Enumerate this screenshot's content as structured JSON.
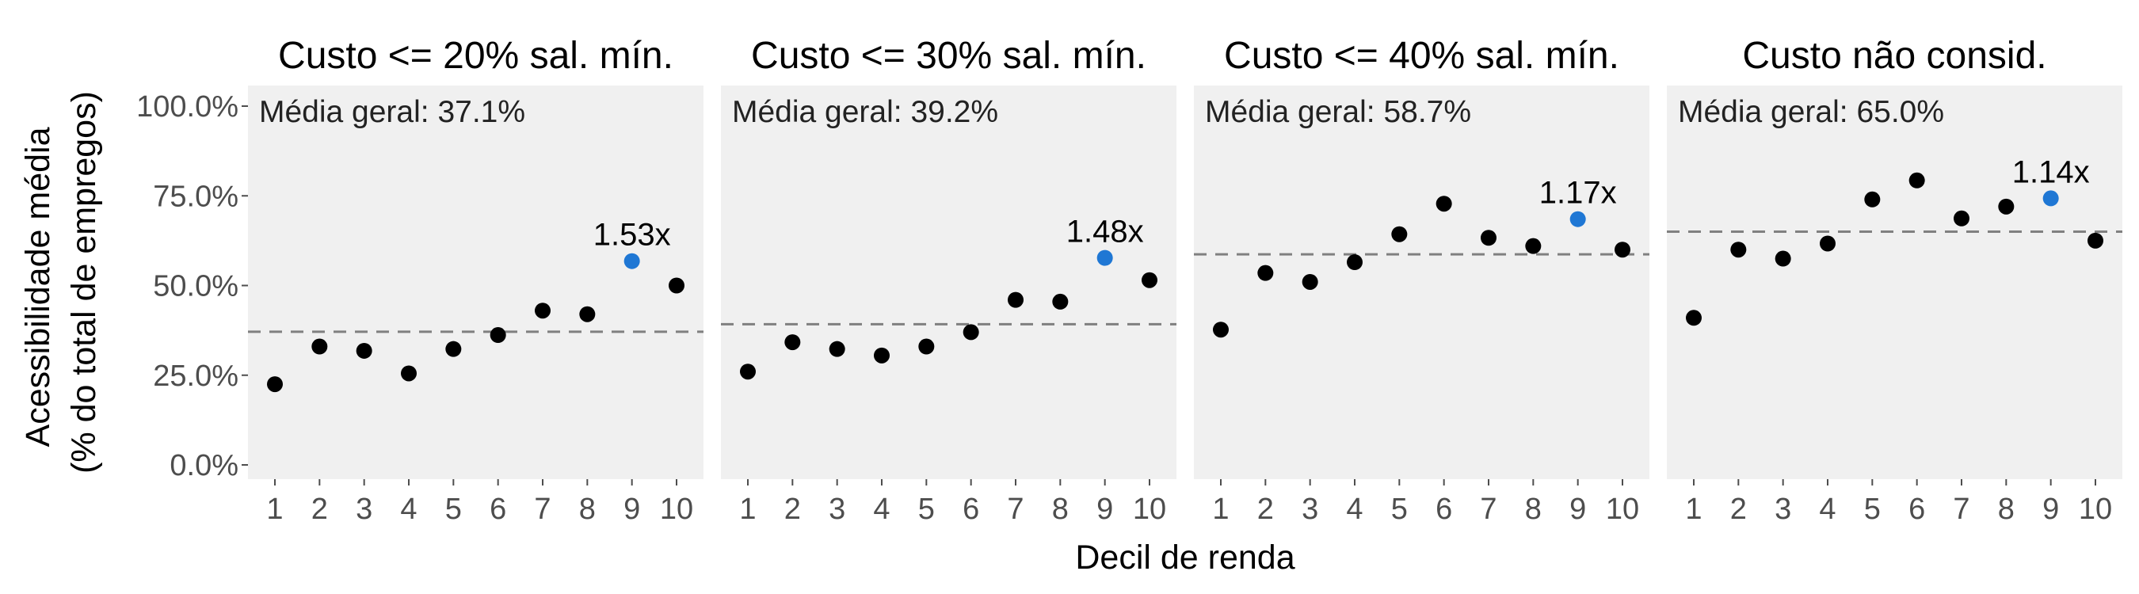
{
  "chart_data": {
    "type": "scatter",
    "xlabel": "Decil de renda",
    "ylabel_lines": [
      "Acessibilidade média",
      "(% do total de empregos)"
    ],
    "categories": [
      "1",
      "2",
      "3",
      "4",
      "5",
      "6",
      "7",
      "8",
      "9",
      "10"
    ],
    "ylim": [
      0,
      1
    ],
    "yticks": [
      0,
      0.25,
      0.5,
      0.75,
      1.0
    ],
    "ytick_labels": [
      "0.0%",
      "25.0%",
      "50.0%",
      "75.0%",
      "100.0%"
    ],
    "highlight_decile": 9,
    "colors": {
      "point": "#000000",
      "highlight": "#1f77d4",
      "average_line": "#808080",
      "panel_bg": "#f0f0f0"
    },
    "grid": false,
    "panels": [
      {
        "title": "Custo <= 20% sal. mín.",
        "avg_label": "Média geral: 37.1%",
        "average": 0.371,
        "ratio_label": "1.53x",
        "values": [
          0.225,
          0.33,
          0.318,
          0.255,
          0.323,
          0.362,
          0.43,
          0.42,
          0.568,
          0.5
        ]
      },
      {
        "title": "Custo <= 30% sal. mín.",
        "avg_label": "Média geral: 39.2%",
        "average": 0.392,
        "ratio_label": "1.48x",
        "values": [
          0.26,
          0.342,
          0.323,
          0.305,
          0.33,
          0.37,
          0.46,
          0.455,
          0.577,
          0.515
        ]
      },
      {
        "title": "Custo <= 40% sal. mín.",
        "avg_label": "Média geral: 58.7%",
        "average": 0.587,
        "ratio_label": "1.17x",
        "values": [
          0.377,
          0.535,
          0.51,
          0.565,
          0.643,
          0.728,
          0.633,
          0.61,
          0.685,
          0.6
        ]
      },
      {
        "title": "Custo não consid.",
        "avg_label": "Média geral: 65.0%",
        "average": 0.65,
        "ratio_label": "1.14x",
        "values": [
          0.41,
          0.6,
          0.575,
          0.617,
          0.74,
          0.793,
          0.687,
          0.72,
          0.743,
          0.625
        ]
      }
    ]
  }
}
